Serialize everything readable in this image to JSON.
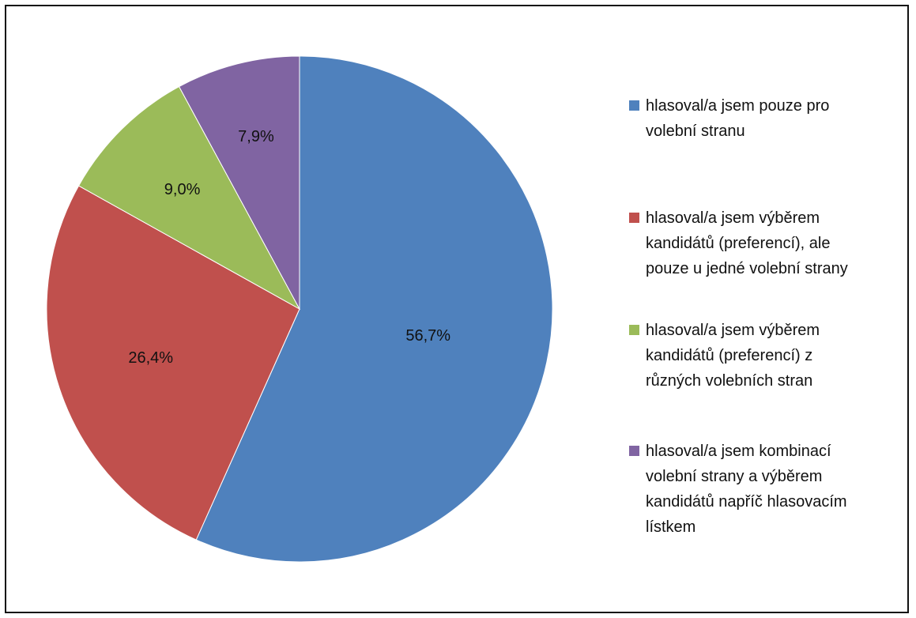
{
  "chart_data": {
    "type": "pie",
    "legend_position": "right",
    "slices": [
      {
        "label": "hlasoval/a jsem pouze pro\nvolební stranu",
        "value": 56.7,
        "display": "56,7%",
        "color": "#4F81BD"
      },
      {
        "label": "hlasoval/a jsem výběrem\nkandidátů (preferencí), ale\npouze u jedné volební strany",
        "value": 26.4,
        "display": "26,4%",
        "color": "#C0504D"
      },
      {
        "label": "hlasoval/a jsem výběrem\nkandidátů (preferencí) z\nrůzných volebních stran",
        "value": 9.0,
        "display": "9,0%",
        "color": "#9BBB59"
      },
      {
        "label": "hlasoval/a jsem kombinací\nvolební strany a výběrem\nkandidátů napříč hlasovacím\nlístkem",
        "value": 7.9,
        "display": "7,9%",
        "color": "#8064A2"
      }
    ]
  }
}
